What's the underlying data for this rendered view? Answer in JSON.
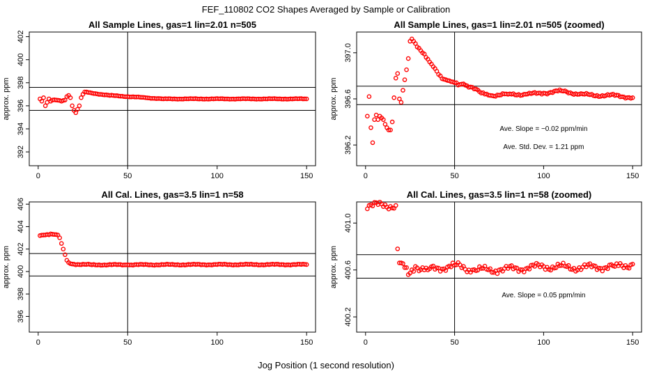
{
  "figure": {
    "title": "FEF_110802  CO2 Shapes Averaged by Sample or Calibration",
    "xlabel": "Jog Position (1 second resolution)"
  },
  "colors": {
    "marker": "#ff0000",
    "axis": "#000000",
    "background": "#ffffff"
  },
  "chart_data": [
    {
      "type": "scatter",
      "title": "All Sample Lines, gas=1 lin=2.01 n=505",
      "ylabel": "approx. ppm",
      "xlim": [
        -5,
        155
      ],
      "ylim": [
        390.8,
        402.4
      ],
      "xticks": [
        0,
        50,
        100,
        150
      ],
      "yticks": [
        392,
        394,
        396,
        398,
        400,
        402
      ],
      "hlines": [
        397.6,
        395.6
      ],
      "vline": 50,
      "annotations": [],
      "anchors": [
        [
          1,
          396.6
        ],
        [
          2,
          396.4
        ],
        [
          3,
          396.7
        ],
        [
          4,
          396.0
        ],
        [
          5,
          396.3
        ],
        [
          6,
          396.6
        ],
        [
          7,
          396.4
        ],
        [
          8,
          396.5
        ],
        [
          10,
          396.5
        ],
        [
          13,
          396.4
        ],
        [
          15,
          396.5
        ],
        [
          16,
          396.8
        ],
        [
          17,
          396.9
        ],
        [
          18,
          396.7
        ],
        [
          19,
          396.0
        ],
        [
          20,
          395.6
        ],
        [
          21,
          395.4
        ],
        [
          22,
          395.7
        ],
        [
          23,
          396.0
        ],
        [
          24,
          396.7
        ],
        [
          25,
          397.0
        ],
        [
          26,
          397.2
        ],
        [
          30,
          397.1
        ],
        [
          40,
          396.9
        ],
        [
          50,
          396.8
        ],
        [
          60,
          396.7
        ],
        [
          70,
          396.6
        ],
        [
          150,
          396.6
        ]
      ],
      "noise": 0.03
    },
    {
      "type": "scatter",
      "title": "All Sample Lines, gas=1 lin=2.01 n=505 (zoomed)",
      "ylabel": "approx. ppm",
      "xlim": [
        -5,
        155
      ],
      "ylim": [
        396.02,
        397.18
      ],
      "xticks": [
        0,
        50,
        100,
        150
      ],
      "yticks": [
        396.2,
        396.6,
        397.0
      ],
      "ytick_labels": [
        "396.2",
        "396.6",
        "397.0"
      ],
      "hlines": [
        396.71,
        396.55
      ],
      "vline": 50,
      "annotations": [
        "Ave. Slope =  −0.02  ppm/min",
        "Ave. Std. Dev. =  1.21  ppm"
      ],
      "anchors": [
        [
          1,
          396.45
        ],
        [
          2,
          396.62
        ],
        [
          3,
          396.35
        ],
        [
          4,
          396.22
        ],
        [
          5,
          396.42
        ],
        [
          6,
          396.46
        ],
        [
          7,
          396.42
        ],
        [
          8,
          396.45
        ],
        [
          10,
          396.42
        ],
        [
          11,
          396.38
        ],
        [
          12,
          396.35
        ],
        [
          13,
          396.33
        ],
        [
          14,
          396.33
        ],
        [
          15,
          396.4
        ],
        [
          16,
          396.61
        ],
        [
          17,
          396.78
        ],
        [
          18,
          396.82
        ],
        [
          19,
          396.6
        ],
        [
          20,
          396.57
        ],
        [
          24,
          396.95
        ],
        [
          25,
          397.1
        ],
        [
          26,
          397.12
        ],
        [
          27,
          397.1
        ],
        [
          28,
          397.08
        ],
        [
          30,
          397.04
        ],
        [
          32,
          397.0
        ],
        [
          34,
          396.96
        ],
        [
          36,
          396.92
        ],
        [
          38,
          396.88
        ],
        [
          40,
          396.84
        ],
        [
          42,
          396.8
        ],
        [
          44,
          396.77
        ],
        [
          46,
          396.76
        ],
        [
          48,
          396.75
        ],
        [
          50,
          396.74
        ],
        [
          52,
          396.72
        ],
        [
          55,
          396.73
        ],
        [
          60,
          396.7
        ],
        [
          65,
          396.65
        ],
        [
          70,
          396.63
        ],
        [
          80,
          396.64
        ],
        [
          90,
          396.64
        ],
        [
          100,
          396.65
        ],
        [
          110,
          396.67
        ],
        [
          120,
          396.64
        ],
        [
          130,
          396.63
        ],
        [
          140,
          396.63
        ],
        [
          150,
          396.61
        ]
      ],
      "noise": 0.012
    },
    {
      "type": "scatter",
      "title": "All Cal. Lines, gas=3.5 lin=1 n=58",
      "ylabel": "approx. ppm",
      "xlim": [
        -5,
        155
      ],
      "ylim": [
        394.6,
        406.2
      ],
      "xticks": [
        0,
        50,
        100,
        150
      ],
      "yticks": [
        396,
        398,
        400,
        402,
        404,
        406
      ],
      "hlines": [
        401.6,
        399.6
      ],
      "vline": 50,
      "annotations": [],
      "anchors": [
        [
          1,
          403.2
        ],
        [
          3,
          403.25
        ],
        [
          5,
          403.3
        ],
        [
          7,
          403.35
        ],
        [
          9,
          403.3
        ],
        [
          11,
          403.25
        ],
        [
          12,
          403.0
        ],
        [
          13,
          402.5
        ],
        [
          14,
          402.0
        ],
        [
          15,
          401.5
        ],
        [
          16,
          401.0
        ],
        [
          17,
          400.8
        ],
        [
          18,
          400.7
        ],
        [
          20,
          400.65
        ],
        [
          30,
          400.6
        ],
        [
          50,
          400.6
        ],
        [
          100,
          400.62
        ],
        [
          150,
          400.62
        ]
      ],
      "noise": 0.05
    },
    {
      "type": "scatter",
      "title": "All Cal. Lines, gas=3.5 lin=1 n=58 (zoomed)",
      "ylabel": "approx. ppm",
      "xlim": [
        -5,
        155
      ],
      "ylim": [
        400.07,
        401.18
      ],
      "xticks": [
        0,
        50,
        100,
        150
      ],
      "yticks": [
        400.2,
        400.6,
        401.0
      ],
      "ytick_labels": [
        "400.2",
        "400.6",
        "401.0"
      ],
      "hlines": [
        400.73,
        400.53
      ],
      "vline": 50,
      "annotations": [
        "Ave. Slope =  0.05  ppm/min"
      ],
      "anchors": [
        [
          17,
          401.15
        ],
        [
          18,
          400.78
        ],
        [
          19,
          400.66
        ],
        [
          20,
          400.66
        ],
        [
          22,
          400.62
        ],
        [
          24,
          400.56
        ],
        [
          28,
          400.63
        ],
        [
          35,
          400.6
        ],
        [
          50,
          400.64
        ],
        [
          60,
          400.6
        ],
        [
          75,
          400.6
        ],
        [
          100,
          400.63
        ],
        [
          120,
          400.62
        ],
        [
          140,
          400.63
        ],
        [
          150,
          400.65
        ]
      ],
      "noise": 0.035
    }
  ]
}
